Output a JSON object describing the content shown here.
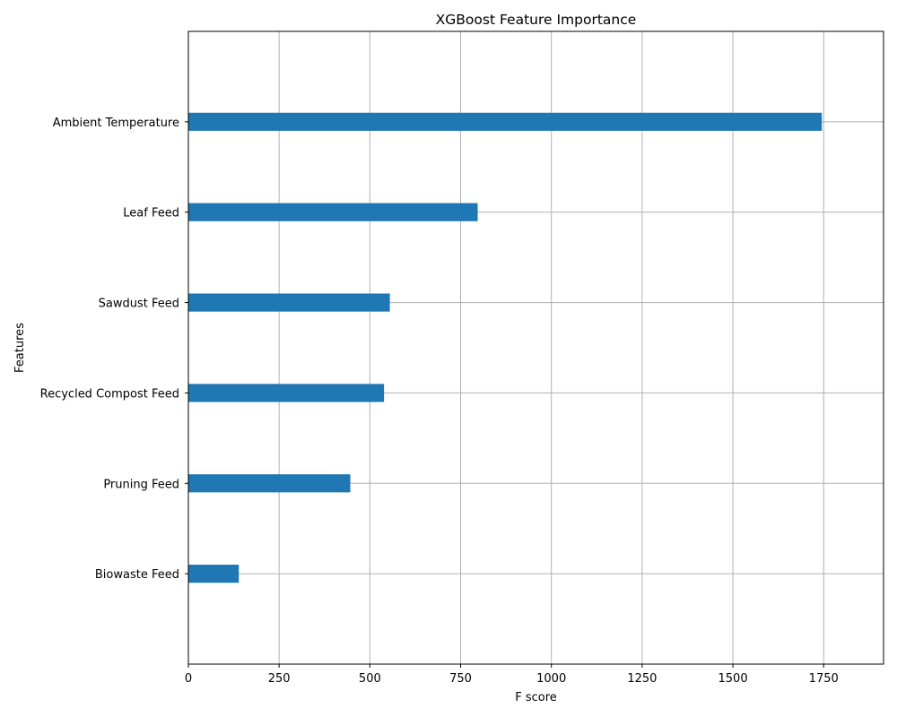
{
  "chart_data": {
    "type": "bar",
    "orientation": "horizontal",
    "title": "XGBoost Feature Importance",
    "xlabel": "F score",
    "ylabel": "Features",
    "categories": [
      "Biowaste Feed",
      "Pruning Feed",
      "Recycled Compost Feed",
      "Sawdust Feed",
      "Leaf Feed",
      "Ambient Temperature"
    ],
    "values": [
      139,
      446,
      539,
      555,
      797,
      1745
    ],
    "xlim": [
      0,
      1915
    ],
    "xticks": [
      0,
      250,
      500,
      750,
      1000,
      1250,
      1500,
      1750
    ],
    "grid": true,
    "bar_color": "#1f77b4",
    "grid_color": "#b0b0b0"
  }
}
